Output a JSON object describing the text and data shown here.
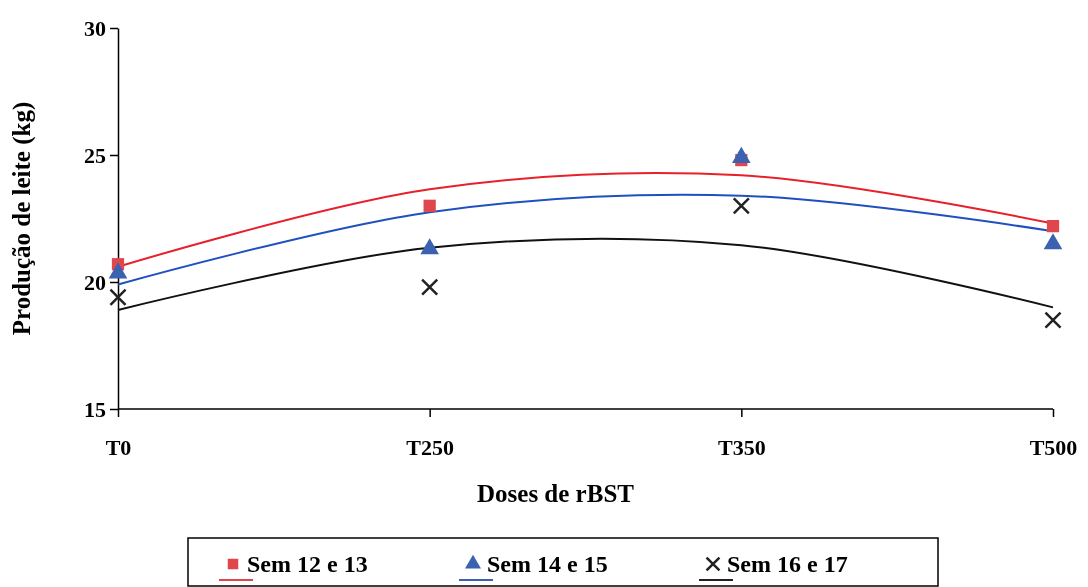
{
  "chart_data": {
    "type": "scatter",
    "xlabel": "Doses de rBST",
    "ylabel": "Produção de leite (kg)",
    "categories": [
      "T0",
      "T250",
      "T350",
      "T500"
    ],
    "ylim": [
      15,
      30
    ],
    "yticks": [
      15,
      20,
      25,
      30
    ],
    "grid": false,
    "legend": "bottom",
    "series": [
      {
        "name": "Sem 12 e 13",
        "marker": "square",
        "color": "#e0474c",
        "values": [
          20.7,
          23.0,
          24.8,
          22.2
        ]
      },
      {
        "name": "Sem 14 e 15",
        "marker": "triangle",
        "color": "#3a62b0",
        "values": [
          20.35,
          21.3,
          24.9,
          21.5
        ]
      },
      {
        "name": "Sem 16 e 17",
        "marker": "cross",
        "color": "#222222",
        "values": [
          19.4,
          19.8,
          23.0,
          18.5
        ]
      },
      {
        "type": "line",
        "color": "#e8202a",
        "values": [
          20.6,
          23.65,
          24.2,
          22.3
        ]
      },
      {
        "type": "line",
        "color": "#2050c0",
        "values": [
          19.9,
          22.75,
          23.4,
          22.0
        ]
      },
      {
        "type": "line",
        "color": "#111111",
        "values": [
          18.9,
          21.35,
          21.45,
          19.0
        ]
      }
    ]
  }
}
